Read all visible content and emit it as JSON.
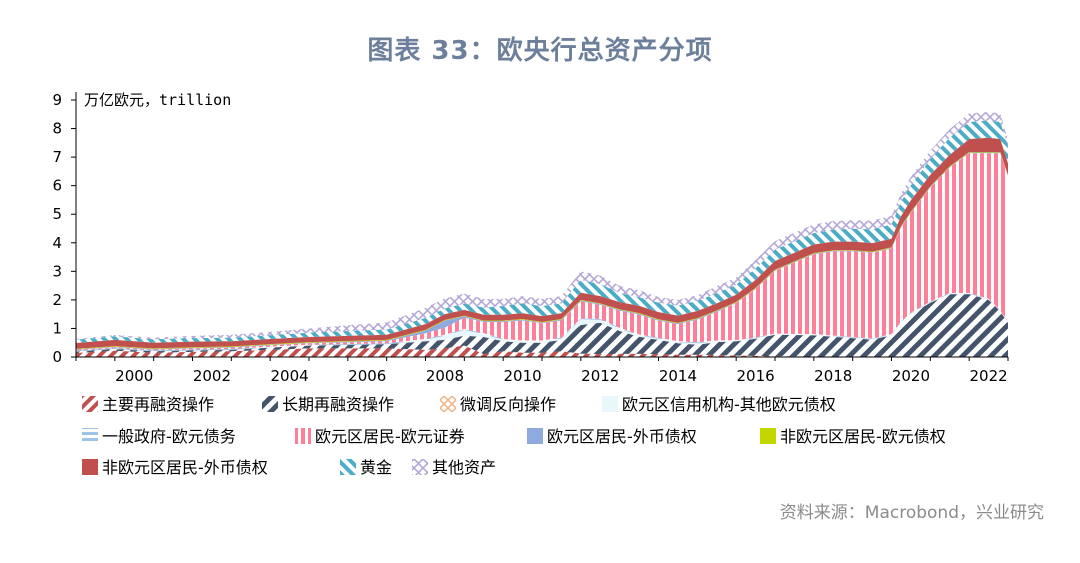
{
  "header": {
    "title": "图表 33：欧央行总资产分项"
  },
  "footer": {
    "source": "资料来源：Macrobond，兴业研究"
  },
  "chart_data": {
    "type": "area",
    "stacked": true,
    "unit_label": "万亿欧元，trillion",
    "ylim": [
      0,
      9
    ],
    "yticks": [
      0,
      1,
      2,
      3,
      4,
      5,
      6,
      7,
      8,
      9
    ],
    "xlim": [
      1999,
      2023
    ],
    "xticks": [
      2000,
      2002,
      2004,
      2006,
      2008,
      2010,
      2012,
      2014,
      2016,
      2018,
      2020,
      2022
    ],
    "x": [
      1999,
      2000,
      2001,
      2002,
      2003,
      2004,
      2005,
      2006,
      2007,
      2008,
      2008.5,
      2009,
      2009.5,
      2010,
      2010.5,
      2011,
      2011.5,
      2012,
      2012.5,
      2013,
      2013.5,
      2014,
      2014.5,
      2015,
      2015.5,
      2016,
      2016.5,
      2017,
      2017.5,
      2018,
      2018.5,
      2019,
      2019.5,
      2020,
      2020.25,
      2020.5,
      2021,
      2021.5,
      2022,
      2022.5,
      2022.8,
      2023
    ],
    "series": [
      {
        "name": "主要再融资操作",
        "color": "#c0504d",
        "values": [
          0.14,
          0.22,
          0.15,
          0.18,
          0.2,
          0.25,
          0.3,
          0.3,
          0.3,
          0.25,
          0.3,
          0.4,
          0.1,
          0.2,
          0.15,
          0.15,
          0.2,
          0.12,
          0.1,
          0.11,
          0.11,
          0.1,
          0.08,
          0.08,
          0.07,
          0.05,
          0.04,
          0.03,
          0.02,
          0.01,
          0.01,
          0.01,
          0.01,
          0.01,
          0.01,
          0.01,
          0.0,
          0.0,
          0.0,
          0.0,
          0.0,
          0.0
        ]
      },
      {
        "name": "长期再融资操作",
        "color": "#44546a",
        "values": [
          0.05,
          0.06,
          0.05,
          0.05,
          0.05,
          0.08,
          0.1,
          0.12,
          0.15,
          0.3,
          0.3,
          0.35,
          0.6,
          0.35,
          0.35,
          0.35,
          0.4,
          1.0,
          1.1,
          0.8,
          0.6,
          0.5,
          0.4,
          0.35,
          0.45,
          0.5,
          0.6,
          0.75,
          0.75,
          0.75,
          0.7,
          0.65,
          0.6,
          0.75,
          1.2,
          1.5,
          1.9,
          2.2,
          2.2,
          2.0,
          1.6,
          1.2
        ]
      },
      {
        "name": "微调反向操作",
        "color": "#f4b183",
        "values": [
          0.0,
          0.0,
          0.0,
          0.0,
          0.0,
          0.0,
          0.0,
          0.0,
          0.0,
          0.0,
          0.0,
          0.0,
          0.0,
          0.0,
          0.0,
          0.0,
          0.0,
          0.0,
          0.0,
          0.0,
          0.0,
          0.0,
          0.0,
          0.0,
          0.0,
          0.0,
          0.0,
          0.0,
          0.0,
          0.0,
          0.0,
          0.0,
          0.0,
          0.0,
          0.0,
          0.0,
          0.0,
          0.0,
          0.0,
          0.0,
          0.0,
          0.0
        ]
      },
      {
        "name": "欧元区信用机构-其他欧元债权",
        "color": "#9ee0e8",
        "values": [
          0.0,
          0.0,
          0.0,
          0.0,
          0.0,
          0.0,
          0.0,
          0.0,
          0.0,
          0.05,
          0.15,
          0.2,
          0.1,
          0.05,
          0.05,
          0.05,
          0.05,
          0.2,
          0.1,
          0.08,
          0.05,
          0.04,
          0.04,
          0.05,
          0.03,
          0.02,
          0.02,
          0.02,
          0.02,
          0.02,
          0.02,
          0.02,
          0.02,
          0.02,
          0.02,
          0.02,
          0.02,
          0.02,
          0.02,
          0.02,
          0.02,
          0.02
        ]
      },
      {
        "name": "一般政府-欧元债务",
        "color": "#9dc3e6",
        "values": [
          0.03,
          0.03,
          0.03,
          0.03,
          0.03,
          0.03,
          0.03,
          0.03,
          0.03,
          0.03,
          0.03,
          0.03,
          0.03,
          0.03,
          0.03,
          0.03,
          0.03,
          0.03,
          0.03,
          0.03,
          0.03,
          0.03,
          0.03,
          0.03,
          0.03,
          0.02,
          0.02,
          0.02,
          0.02,
          0.02,
          0.02,
          0.02,
          0.02,
          0.02,
          0.02,
          0.02,
          0.02,
          0.02,
          0.02,
          0.02,
          0.02,
          0.02
        ]
      },
      {
        "name": "欧元区居民-欧元证券",
        "color": "#ff7f99",
        "values": [
          0.03,
          0.03,
          0.03,
          0.04,
          0.05,
          0.05,
          0.05,
          0.06,
          0.07,
          0.2,
          0.25,
          0.4,
          0.4,
          0.6,
          0.7,
          0.6,
          0.6,
          0.6,
          0.5,
          0.6,
          0.7,
          0.6,
          0.6,
          0.8,
          1.0,
          1.3,
          1.7,
          2.2,
          2.5,
          2.8,
          2.95,
          3.0,
          3.0,
          3.0,
          3.3,
          3.5,
          4.0,
          4.4,
          4.9,
          5.1,
          5.5,
          5.1
        ]
      },
      {
        "name": "欧元区居民-外币债权",
        "color": "#8faadc",
        "values": [
          0.02,
          0.02,
          0.02,
          0.02,
          0.02,
          0.02,
          0.02,
          0.03,
          0.03,
          0.1,
          0.25,
          0.05,
          0.03,
          0.03,
          0.03,
          0.03,
          0.03,
          0.03,
          0.03,
          0.03,
          0.03,
          0.03,
          0.03,
          0.03,
          0.03,
          0.02,
          0.02,
          0.02,
          0.02,
          0.02,
          0.02,
          0.02,
          0.02,
          0.02,
          0.02,
          0.02,
          0.02,
          0.02,
          0.02,
          0.02,
          0.02,
          0.02
        ]
      },
      {
        "name": "非欧元区居民-欧元债权",
        "color": "#c4d600",
        "values": [
          0.02,
          0.02,
          0.02,
          0.02,
          0.02,
          0.02,
          0.02,
          0.02,
          0.02,
          0.02,
          0.02,
          0.02,
          0.02,
          0.02,
          0.02,
          0.02,
          0.02,
          0.02,
          0.02,
          0.02,
          0.02,
          0.02,
          0.02,
          0.02,
          0.02,
          0.02,
          0.02,
          0.02,
          0.02,
          0.02,
          0.02,
          0.02,
          0.02,
          0.02,
          0.02,
          0.02,
          0.02,
          0.02,
          0.02,
          0.02,
          0.02,
          0.02
        ]
      },
      {
        "name": "非欧元区居民-外币债权",
        "color": "#c0504d",
        "values": [
          0.2,
          0.22,
          0.2,
          0.2,
          0.18,
          0.18,
          0.18,
          0.18,
          0.18,
          0.2,
          0.2,
          0.2,
          0.2,
          0.2,
          0.2,
          0.2,
          0.2,
          0.25,
          0.25,
          0.25,
          0.25,
          0.25,
          0.25,
          0.25,
          0.25,
          0.25,
          0.28,
          0.3,
          0.3,
          0.3,
          0.3,
          0.3,
          0.3,
          0.3,
          0.35,
          0.4,
          0.4,
          0.4,
          0.45,
          0.5,
          0.45,
          0.4
        ]
      },
      {
        "name": "黄金",
        "color": "#4bacc6",
        "values": [
          0.12,
          0.12,
          0.12,
          0.12,
          0.13,
          0.13,
          0.15,
          0.17,
          0.18,
          0.22,
          0.2,
          0.22,
          0.25,
          0.3,
          0.35,
          0.35,
          0.35,
          0.45,
          0.42,
          0.32,
          0.3,
          0.33,
          0.35,
          0.35,
          0.35,
          0.35,
          0.4,
          0.4,
          0.4,
          0.4,
          0.42,
          0.45,
          0.48,
          0.5,
          0.5,
          0.52,
          0.55,
          0.6,
          0.6,
          0.6,
          0.6,
          0.6
        ]
      },
      {
        "name": "其他资产",
        "color": "#b4a7d6",
        "values": [
          0.02,
          0.05,
          0.06,
          0.08,
          0.1,
          0.12,
          0.15,
          0.2,
          0.25,
          0.35,
          0.35,
          0.35,
          0.3,
          0.25,
          0.25,
          0.25,
          0.25,
          0.3,
          0.3,
          0.25,
          0.25,
          0.2,
          0.2,
          0.2,
          0.25,
          0.25,
          0.3,
          0.3,
          0.3,
          0.3,
          0.3,
          0.3,
          0.3,
          0.3,
          0.3,
          0.3,
          0.3,
          0.3,
          0.3,
          0.3,
          0.3,
          0.2
        ]
      }
    ]
  }
}
